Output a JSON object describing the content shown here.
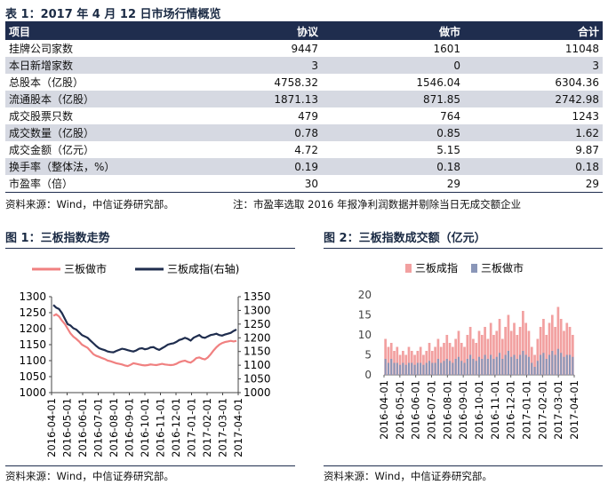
{
  "table_title": "表 1：2017 年 4 月 12 日市场行情概览",
  "table": {
    "headers": [
      "项目",
      "协议",
      "做市",
      "合计"
    ],
    "rows": [
      [
        "挂牌公司家数",
        "9447",
        "1601",
        "11048"
      ],
      [
        "本日新增家数",
        "3",
        "0",
        "3"
      ],
      [
        "总股本（亿股）",
        "4758.32",
        "1546.04",
        "6304.36"
      ],
      [
        "流通股本（亿股）",
        "1871.13",
        "871.85",
        "2742.98"
      ],
      [
        "成交股票只数",
        "479",
        "764",
        "1243"
      ],
      [
        "成交数量（亿股）",
        "0.78",
        "0.85",
        "1.62"
      ],
      [
        "成交金额（亿元）",
        "4.72",
        "5.15",
        "9.87"
      ],
      [
        "换手率（整体法，%）",
        "0.19",
        "0.18",
        "0.18"
      ],
      [
        "市盈率（倍）",
        "30",
        "29",
        "29"
      ]
    ]
  },
  "table_source": "资料来源：Wind，中信证券研究部。",
  "table_note": "注：市盈率选取 2016 年报净利润数据并剔除当日无成交额企业",
  "fig1": {
    "title": "图 1：三板指数走势",
    "source": "资料来源：Wind，中信证券研究部。"
  },
  "fig2": {
    "title": "图 2：三板指数成交额（亿元）",
    "source": "资料来源：Wind，中信证券研究部。"
  },
  "chart_data": [
    {
      "type": "line",
      "x_tick_labels": [
        "2016-04-01",
        "2016-05-01",
        "2016-06-01",
        "2016-07-01",
        "2016-08-01",
        "2016-09-01",
        "2016-10-01",
        "2016-11-01",
        "2016-12-01",
        "2017-01-01",
        "2017-02-01",
        "2017-03-01",
        "2017-04-01"
      ],
      "ylim": [
        1000,
        1300
      ],
      "y_ticks": [
        1000,
        1050,
        1100,
        1150,
        1200,
        1250,
        1300
      ],
      "y2lim": [
        1000,
        1350
      ],
      "y2_ticks": [
        1000,
        1050,
        1100,
        1150,
        1200,
        1250,
        1300,
        1350
      ],
      "legend_position": "top",
      "colors": {
        "三板做市": "#f08080",
        "三板成指(右轴)": "#1f2d4e"
      },
      "series": [
        {
          "name": "三板做市",
          "axis": "left",
          "values": [
            1240,
            1245,
            1238,
            1225,
            1215,
            1200,
            1185,
            1175,
            1168,
            1160,
            1150,
            1145,
            1140,
            1130,
            1120,
            1115,
            1112,
            1108,
            1105,
            1100,
            1098,
            1095,
            1092,
            1090,
            1088,
            1085,
            1083,
            1087,
            1092,
            1090,
            1088,
            1086,
            1085,
            1086,
            1088,
            1087,
            1086,
            1088,
            1090,
            1088,
            1087,
            1086,
            1087,
            1090,
            1095,
            1098,
            1100,
            1096,
            1094,
            1100,
            1108,
            1110,
            1106,
            1104,
            1110,
            1120,
            1132,
            1142,
            1150,
            1155,
            1158,
            1160,
            1162,
            1160,
            1162
          ]
        },
        {
          "name": "三板成指(右轴)",
          "axis": "right",
          "values": [
            1320,
            1310,
            1305,
            1290,
            1270,
            1250,
            1245,
            1235,
            1230,
            1220,
            1210,
            1205,
            1200,
            1190,
            1180,
            1170,
            1162,
            1158,
            1155,
            1150,
            1148,
            1147,
            1152,
            1156,
            1160,
            1158,
            1155,
            1152,
            1150,
            1154,
            1160,
            1162,
            1158,
            1160,
            1165,
            1166,
            1160,
            1156,
            1162,
            1168,
            1175,
            1178,
            1180,
            1185,
            1192,
            1195,
            1200,
            1196,
            1190,
            1200,
            1205,
            1210,
            1202,
            1200,
            1205,
            1210,
            1212,
            1215,
            1210,
            1208,
            1212,
            1215,
            1218,
            1225,
            1230
          ]
        }
      ]
    },
    {
      "type": "bar",
      "x_tick_labels": [
        "2016-04-01",
        "2016-05-01",
        "2016-06-01",
        "2016-07-01",
        "2016-08-01",
        "2016-09-01",
        "2016-10-01",
        "2016-11-01",
        "2016-12-01",
        "2017-01-01",
        "2017-02-01",
        "2017-03-01",
        "2017-04-01"
      ],
      "ylim": [
        0,
        20
      ],
      "y_ticks": [
        0,
        5,
        10,
        15,
        20
      ],
      "stacked": false,
      "legend_position": "top",
      "colors": {
        "三板成指": "#f2a0a0",
        "三板做市": "#8a96b8"
      },
      "series": [
        {
          "name": "三板成指",
          "values": [
            9,
            7,
            8,
            6,
            7,
            5,
            6,
            5,
            7,
            6,
            5,
            6,
            7,
            5,
            6,
            8,
            6,
            7,
            9,
            7,
            8,
            10,
            8,
            7,
            9,
            11,
            8,
            7,
            10,
            12,
            9,
            8,
            11,
            10,
            12,
            9,
            13,
            10,
            11,
            14,
            9,
            12,
            15,
            11,
            13,
            10,
            12,
            16,
            13,
            11,
            7,
            5,
            9,
            12,
            14,
            10,
            13,
            15,
            12,
            17,
            14,
            11,
            13,
            12,
            10
          ]
        },
        {
          "name": "三板做市",
          "values": [
            4,
            3,
            4,
            3,
            3,
            2.5,
            3,
            2.5,
            3,
            3,
            2.5,
            3,
            3,
            2.5,
            3,
            3.5,
            3,
            3,
            4,
            3,
            3.5,
            4,
            3.5,
            3,
            4,
            4.5,
            3.5,
            3,
            4,
            5,
            4,
            3.5,
            4.5,
            4,
            5,
            4,
            5,
            4,
            4.5,
            5.5,
            4,
            5,
            6,
            4.5,
            5,
            4,
            5,
            6,
            5,
            4.5,
            3,
            2,
            3.5,
            5,
            5.5,
            4,
            5,
            6,
            5,
            6.5,
            5.5,
            4.5,
            5,
            5,
            4.5
          ]
        }
      ]
    }
  ]
}
